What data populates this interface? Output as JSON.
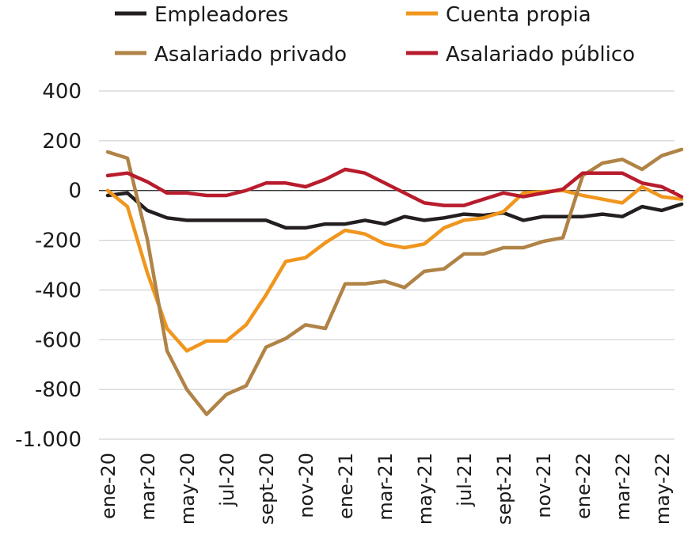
{
  "chart_data": {
    "type": "line",
    "title": "",
    "xlabel": "",
    "ylabel": "",
    "ylim": [
      -1000,
      400
    ],
    "yticks": [
      400,
      200,
      0,
      -200,
      -400,
      -600,
      -800,
      -1000
    ],
    "ytick_labels": [
      "400",
      "200",
      "0",
      "-200",
      "-400",
      "-600",
      "-800",
      "-1.000"
    ],
    "grid": true,
    "legend_position": "top",
    "x": [
      "ene-20",
      "feb-20",
      "mar-20",
      "abr-20",
      "may-20",
      "jun-20",
      "jul-20",
      "ago-20",
      "sept-20",
      "oct-20",
      "nov-20",
      "dic-20",
      "ene-21",
      "feb-21",
      "mar-21",
      "abr-21",
      "may-21",
      "jun-21",
      "jul-21",
      "ago-21",
      "sept-21",
      "oct-21",
      "nov-21",
      "dic-21",
      "ene-22",
      "feb-22",
      "mar-22",
      "abr-22",
      "may-22",
      "jun-22"
    ],
    "x_tick_labels": [
      "ene-20",
      "mar-20",
      "may-20",
      "jul-20",
      "sept-20",
      "nov-20",
      "ene-21",
      "mar-21",
      "may-21",
      "jul-21",
      "sept-21",
      "nov-21",
      "ene-22",
      "mar-22",
      "may-22"
    ],
    "series": [
      {
        "name": "Empleadores",
        "color": "#231f20",
        "values": [
          -20,
          -10,
          -80,
          -110,
          -120,
          -120,
          -120,
          -120,
          -120,
          -150,
          -150,
          -135,
          -135,
          -120,
          -135,
          -105,
          -120,
          -110,
          -95,
          -100,
          -90,
          -120,
          -105,
          -105,
          -105,
          -95,
          -105,
          -65,
          -80,
          -55
        ]
      },
      {
        "name": "Cuenta propia",
        "color": "#f0961e",
        "values": [
          0,
          -65,
          -330,
          -555,
          -645,
          -605,
          -605,
          -540,
          -420,
          -285,
          -270,
          -210,
          -160,
          -175,
          -215,
          -230,
          -215,
          -150,
          -120,
          -110,
          -85,
          -10,
          -5,
          0,
          -20,
          -35,
          -50,
          15,
          -25,
          -35
        ]
      },
      {
        "name": "Asalariado privado",
        "color": "#b08346",
        "values": [
          155,
          130,
          -195,
          -645,
          -800,
          -900,
          -820,
          -785,
          -630,
          -595,
          -540,
          -555,
          -375,
          -375,
          -365,
          -390,
          -325,
          -315,
          -255,
          -255,
          -230,
          -230,
          -205,
          -190,
          60,
          110,
          125,
          85,
          140,
          165
        ]
      },
      {
        "name": "Asalariado público",
        "color": "#b81c2d",
        "values": [
          60,
          70,
          35,
          -10,
          -10,
          -20,
          -20,
          0,
          30,
          30,
          15,
          45,
          85,
          70,
          30,
          -10,
          -50,
          -60,
          -60,
          -35,
          -10,
          -25,
          -10,
          5,
          70,
          70,
          70,
          30,
          15,
          -25
        ]
      }
    ]
  }
}
